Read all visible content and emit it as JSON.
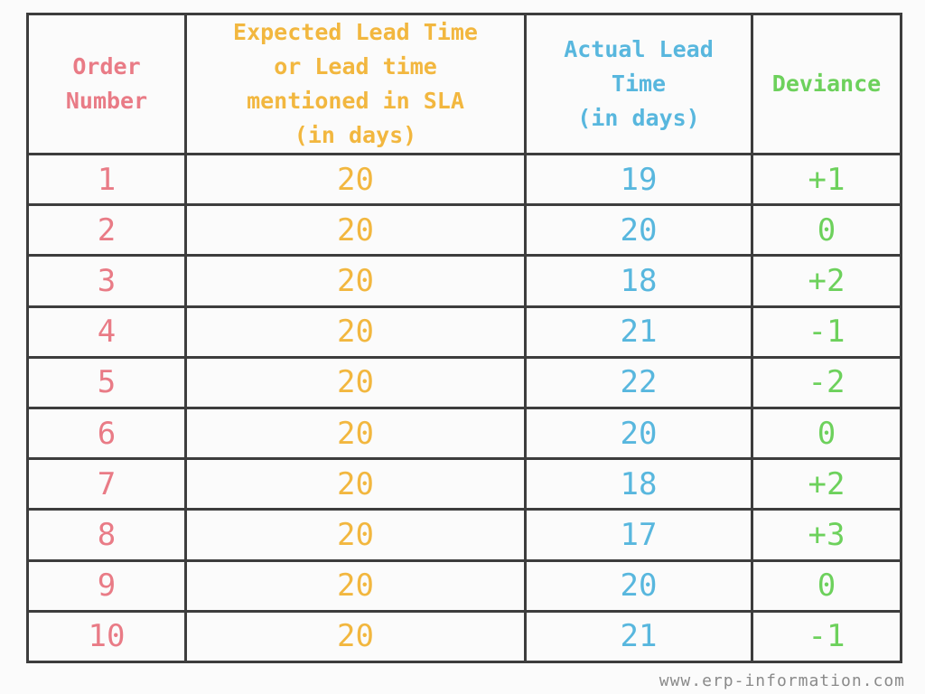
{
  "colors": {
    "order": "#e97b86",
    "expected": "#f2b73f",
    "actual": "#58b7de",
    "deviance": "#6dd15c"
  },
  "table": {
    "headers": [
      [
        "Order",
        "Number"
      ],
      [
        "Expected Lead Time",
        "or Lead time",
        "mentioned in SLA",
        "(in days)"
      ],
      [
        "Actual Lead",
        "Time",
        "(in days)"
      ],
      [
        "Deviance"
      ]
    ],
    "rows": [
      [
        "1",
        "20",
        "19",
        "+1"
      ],
      [
        "2",
        "20",
        "20",
        "0"
      ],
      [
        "3",
        "20",
        "18",
        "+2"
      ],
      [
        "4",
        "20",
        "21",
        "-1"
      ],
      [
        "5",
        "20",
        "22",
        "-2"
      ],
      [
        "6",
        "20",
        "20",
        "0"
      ],
      [
        "7",
        "20",
        "18",
        "+2"
      ],
      [
        "8",
        "20",
        "17",
        "+3"
      ],
      [
        "9",
        "20",
        "20",
        "0"
      ],
      [
        "10",
        "20",
        "21",
        "-1"
      ]
    ]
  },
  "watermark": "www.erp-information.com"
}
